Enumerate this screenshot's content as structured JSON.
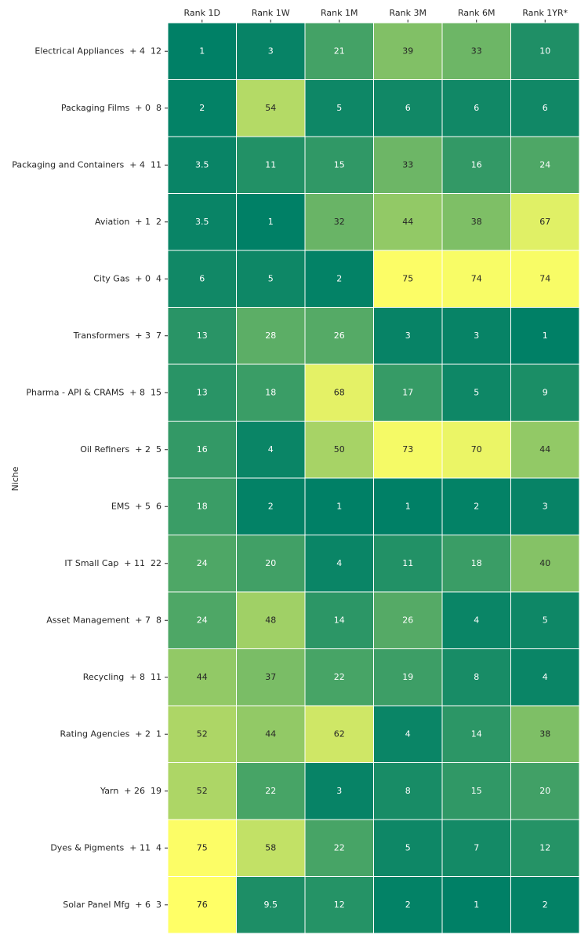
{
  "chart_data": {
    "type": "heatmap",
    "title": "",
    "ylabel": "Niche",
    "xlabel": "",
    "colormap": "summer",
    "colormap_low": "#008066",
    "colormap_high": "#ffff66",
    "value_range": [
      1,
      76
    ],
    "grid_line_color": "#ffffff",
    "dark_text_color": "#262626",
    "light_text_color": "#ffffff",
    "columns": [
      "Rank 1D",
      "Rank 1W",
      "Rank 1M",
      "Rank 3M",
      "Rank 6M",
      "Rank 1YR*"
    ],
    "rows": [
      "Electrical Appliances  + 4  12",
      "Packaging Films  + 0  8",
      "Packaging and Containers  + 4  11",
      "Aviation  + 1  2",
      "City Gas  + 0  4",
      "Transformers  + 3  7",
      "Pharma - API & CRAMS  + 8  15",
      "Oil Refiners  + 2  5",
      "EMS  + 5  6",
      "IT Small Cap  + 11  22",
      "Asset Management  + 7  8",
      "Recycling  + 8  11",
      "Rating Agencies  + 2  1",
      "Yarn  + 26  19",
      "Dyes & Pigments  + 11  4",
      "Solar Panel Mfg  + 6  3"
    ],
    "values": [
      [
        1,
        3,
        21,
        39,
        33,
        10
      ],
      [
        2,
        54,
        5,
        6,
        6,
        6
      ],
      [
        3.5,
        11,
        15,
        33,
        16,
        24
      ],
      [
        3.5,
        1,
        32,
        44,
        38,
        67
      ],
      [
        6,
        5,
        2,
        75,
        74,
        74
      ],
      [
        13,
        28,
        26,
        3,
        3,
        1
      ],
      [
        13,
        18,
        68,
        17,
        5,
        9
      ],
      [
        16,
        4,
        50,
        73,
        70,
        44
      ],
      [
        18,
        2,
        1,
        1,
        2,
        3
      ],
      [
        24,
        20,
        4,
        11,
        18,
        40
      ],
      [
        24,
        48,
        14,
        26,
        4,
        5
      ],
      [
        44,
        37,
        22,
        19,
        8,
        4
      ],
      [
        52,
        44,
        62,
        4,
        14,
        38
      ],
      [
        52,
        22,
        3,
        8,
        15,
        20
      ],
      [
        75,
        58,
        22,
        5,
        7,
        12
      ],
      [
        76,
        9.5,
        12,
        2,
        1,
        2
      ]
    ],
    "value_labels": [
      [
        "1",
        "3",
        "21",
        "39",
        "33",
        "10"
      ],
      [
        "2",
        "54",
        "5",
        "6",
        "6",
        "6"
      ],
      [
        "3.5",
        "11",
        "15",
        "33",
        "16",
        "24"
      ],
      [
        "3.5",
        "1",
        "32",
        "44",
        "38",
        "67"
      ],
      [
        "6",
        "5",
        "2",
        "75",
        "74",
        "74"
      ],
      [
        "13",
        "28",
        "26",
        "3",
        "3",
        "1"
      ],
      [
        "13",
        "18",
        "68",
        "17",
        "5",
        "9"
      ],
      [
        "16",
        "4",
        "50",
        "73",
        "70",
        "44"
      ],
      [
        "18",
        "2",
        "1",
        "1",
        "2",
        "3"
      ],
      [
        "24",
        "20",
        "4",
        "11",
        "18",
        "40"
      ],
      [
        "24",
        "48",
        "14",
        "26",
        "4",
        "5"
      ],
      [
        "44",
        "37",
        "22",
        "19",
        "8",
        "4"
      ],
      [
        "52",
        "44",
        "62",
        "4",
        "14",
        "38"
      ],
      [
        "52",
        "22",
        "3",
        "8",
        "15",
        "20"
      ],
      [
        "75",
        "58",
        "22",
        "5",
        "7",
        "12"
      ],
      [
        "76",
        "9.5",
        "12",
        "2",
        "1",
        "2"
      ]
    ]
  }
}
